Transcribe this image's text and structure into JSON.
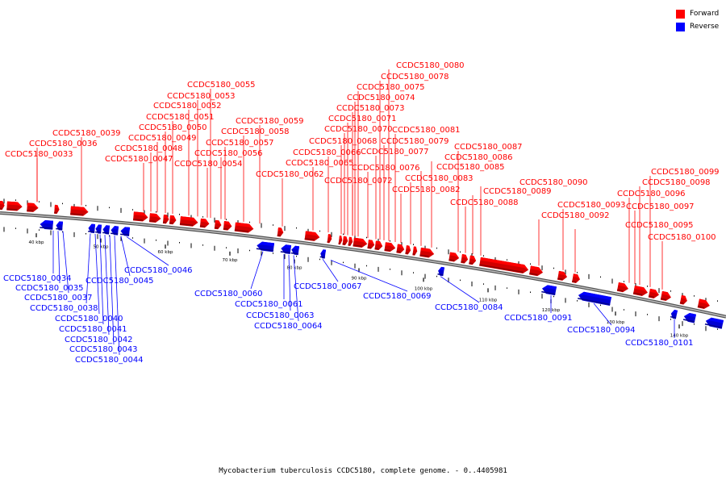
{
  "colors": {
    "forward": "#ff0000",
    "reverse": "#0000ff",
    "backbone": "#888888"
  },
  "legend": [
    {
      "label": "Forward",
      "color": "#ff0000"
    },
    {
      "label": "Reverse",
      "color": "#0000ff"
    }
  ],
  "caption": "Mycobacterium tuberculosis CCDC5180, complete genome. - 0..4405981",
  "scale_ticks": [
    {
      "label": "40 kbp"
    },
    {
      "label": "50 kbp"
    },
    {
      "label": "60 kbp"
    },
    {
      "label": "70 kbp"
    },
    {
      "label": "80 kbp"
    },
    {
      "label": "90 kbp"
    },
    {
      "label": "100 kbp"
    },
    {
      "label": "110 kbp"
    },
    {
      "label": "120 kbp"
    },
    {
      "label": "130 kbp"
    },
    {
      "label": "140 kbp"
    }
  ],
  "forward_genes": [
    "CCDC5180_0033",
    "CCDC5180_0036",
    "CCDC5180_0039",
    "CCDC5180_0047",
    "CCDC5180_0048",
    "CCDC5180_0049",
    "CCDC5180_0050",
    "CCDC5180_0051",
    "CCDC5180_0052",
    "CCDC5180_0053",
    "CCDC5180_0054",
    "CCDC5180_0055",
    "CCDC5180_0056",
    "CCDC5180_0057",
    "CCDC5180_0058",
    "CCDC5180_0059",
    "CCDC5180_0062",
    "CCDC5180_0065",
    "CCDC5180_0066",
    "CCDC5180_0068",
    "CCDC5180_0070",
    "CCDC5180_0071",
    "CCDC5180_0072",
    "CCDC5180_0073",
    "CCDC5180_0074",
    "CCDC5180_0075",
    "CCDC5180_0076",
    "CCDC5180_0077",
    "CCDC5180_0078",
    "CCDC5180_0079",
    "CCDC5180_0080",
    "CCDC5180_0081",
    "CCDC5180_0082",
    "CCDC5180_0083",
    "CCDC5180_0085",
    "CCDC5180_0086",
    "CCDC5180_0087",
    "CCDC5180_0088",
    "CCDC5180_0089",
    "CCDC5180_0090",
    "CCDC5180_0092",
    "CCDC5180_0093",
    "CCDC5180_0095",
    "CCDC5180_0096",
    "CCDC5180_0097",
    "CCDC5180_0098",
    "CCDC5180_0099",
    "CCDC5180_0100"
  ],
  "reverse_genes": [
    "CCDC5180_0034",
    "CCDC5180_0035",
    "CCDC5180_0037",
    "CCDC5180_0038",
    "CCDC5180_0040",
    "CCDC5180_0041",
    "CCDC5180_0042",
    "CCDC5180_0043",
    "CCDC5180_0044",
    "CCDC5180_0045",
    "CCDC5180_0046",
    "CCDC5180_0060",
    "CCDC5180_0061",
    "CCDC5180_0063",
    "CCDC5180_0064",
    "CCDC5180_0067",
    "CCDC5180_0069",
    "CCDC5180_0084",
    "CCDC5180_0091",
    "CCDC5180_0094",
    "CCDC5180_0101"
  ]
}
